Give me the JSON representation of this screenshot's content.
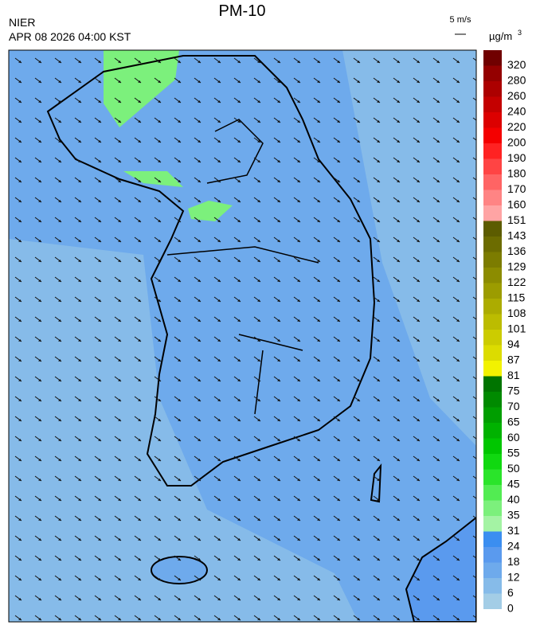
{
  "header": {
    "title": "PM-10",
    "agency": "NIER",
    "datetime": "APR 08 2026 04:00 KST",
    "wind_scale": "5 m/s",
    "unit": "µg/m",
    "unit_sup": "3"
  },
  "colorbar": {
    "levels": [
      0,
      6,
      12,
      18,
      24,
      31,
      35,
      40,
      45,
      50,
      55,
      60,
      65,
      70,
      75,
      81,
      87,
      94,
      101,
      108,
      115,
      122,
      129,
      136,
      143,
      151,
      160,
      170,
      180,
      190,
      200,
      220,
      240,
      260,
      280,
      320
    ],
    "colors": [
      "#a3cde6",
      "#86bbe9",
      "#6eaaec",
      "#5a9aee",
      "#3b8ef0",
      "#a4f3a4",
      "#7cf07c",
      "#52ec52",
      "#2ae42a",
      "#10d810",
      "#00c600",
      "#00b200",
      "#009e00",
      "#008a00",
      "#007400",
      "#f2f200",
      "#dcdc00",
      "#cccc00",
      "#bcbc00",
      "#acac00",
      "#9c9c00",
      "#8c8c00",
      "#7c7c00",
      "#6c6c00",
      "#5c5c00",
      "#ffa4a4",
      "#ff8484",
      "#ff6464",
      "#ff4444",
      "#ff2222",
      "#f40000",
      "#dc0000",
      "#c40000",
      "#ac0000",
      "#940000",
      "#700000"
    ]
  }
}
